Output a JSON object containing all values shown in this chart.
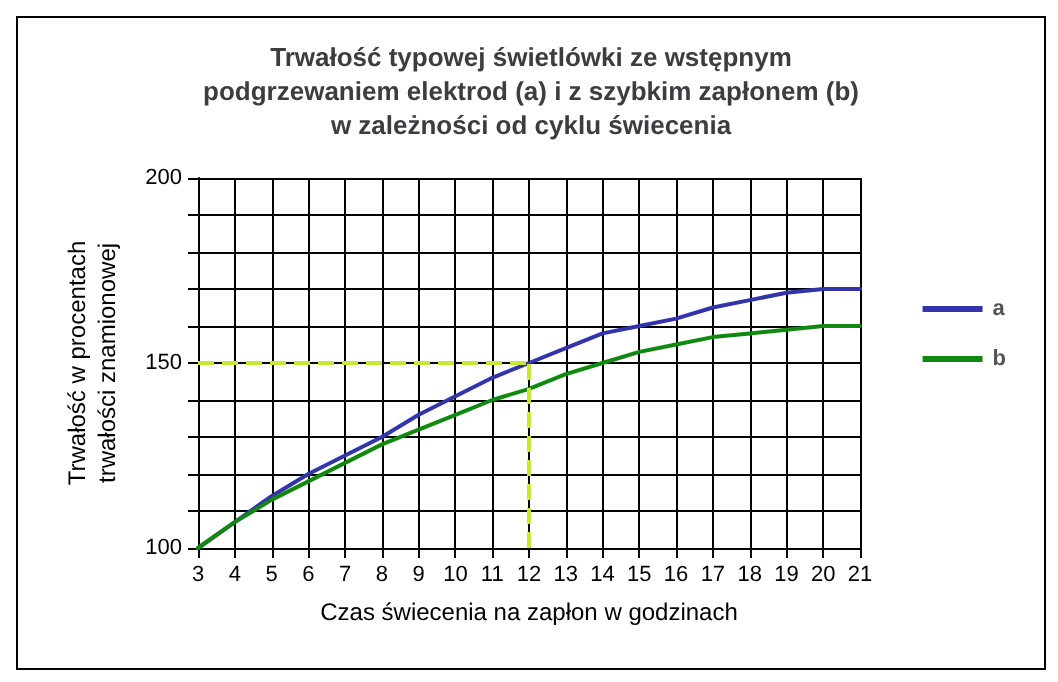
{
  "chart_data": {
    "type": "line",
    "title": "Trwałość typowej świetlówki ze wstępnym\npodgrzewaniem elektrod (a) i z szybkim zapłonem (b)\nw zależności od cyklu świecenia",
    "xlabel": "Czas świecenia na zapłon w godzinach",
    "ylabel": "Trwałość w procentach\ntrwałości znamionowej",
    "x": [
      3,
      4,
      5,
      6,
      7,
      8,
      9,
      10,
      11,
      12,
      13,
      14,
      15,
      16,
      17,
      18,
      19,
      20,
      21
    ],
    "series": [
      {
        "name": "a",
        "color": "#3333aa",
        "values": [
          100,
          107,
          114,
          120,
          125,
          130,
          136,
          141,
          146,
          150,
          154,
          158,
          160,
          162,
          165,
          167,
          169,
          170,
          170
        ]
      },
      {
        "name": "b",
        "color": "#118811",
        "values": [
          100,
          107,
          113,
          118,
          123,
          128,
          132,
          136,
          140,
          143,
          147,
          150,
          153,
          155,
          157,
          158,
          159,
          160,
          160
        ]
      }
    ],
    "ref_lines": [
      {
        "axis": "y",
        "value": 150,
        "color": "#c8e632",
        "line_style": "dashed"
      },
      {
        "axis": "x",
        "value": 12,
        "color": "#c8e632",
        "line_style": "dashed"
      }
    ],
    "xlim": [
      3,
      21
    ],
    "xticks": [
      3,
      4,
      5,
      6,
      7,
      8,
      9,
      10,
      11,
      12,
      13,
      14,
      15,
      16,
      17,
      18,
      19,
      20,
      21
    ],
    "ylim": [
      100,
      200
    ],
    "yticks": [
      100,
      {
        "value": 110,
        "label": null
      },
      {
        "value": 120,
        "label": null
      },
      {
        "value": 130,
        "label": null
      },
      {
        "value": 140,
        "label": null
      },
      150,
      {
        "value": 160,
        "label": null
      },
      {
        "value": 170,
        "label": null
      },
      {
        "value": 180,
        "label": null
      },
      {
        "value": 190,
        "label": null
      },
      200
    ],
    "grid": true,
    "legend": "right",
    "marker": "none",
    "line_style": "solid"
  }
}
